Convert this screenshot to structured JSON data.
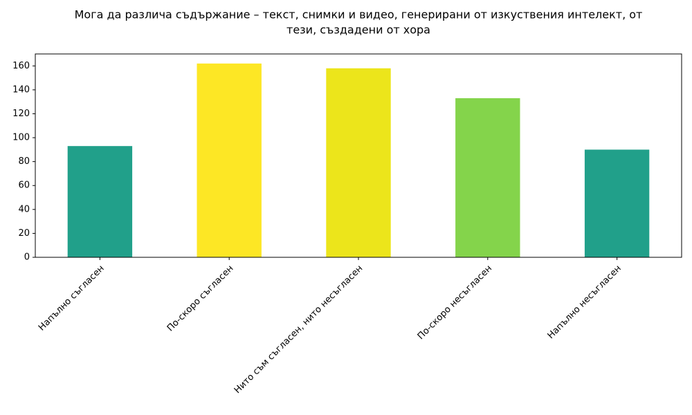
{
  "chart_data": {
    "type": "bar",
    "title": [
      "Мога да различа съдържание – текст, снимки и видео, генерирани от изкуствения интелект, от",
      "тези, създадени от хора"
    ],
    "categories": [
      "Напълно съгласен",
      "По-скоро съгласен",
      "Нито съм съгласен, нито несъгласен",
      "По-скоро несъгласен",
      "Напълно несъгласен"
    ],
    "values": [
      93,
      162,
      158,
      133,
      90
    ],
    "colors": [
      "#21a08a",
      "#fde725",
      "#ece51b",
      "#84d44b",
      "#21a08a"
    ],
    "ylim": [
      0,
      170
    ],
    "yticks": [
      0,
      20,
      40,
      60,
      80,
      100,
      120,
      140,
      160
    ],
    "grid": false
  }
}
